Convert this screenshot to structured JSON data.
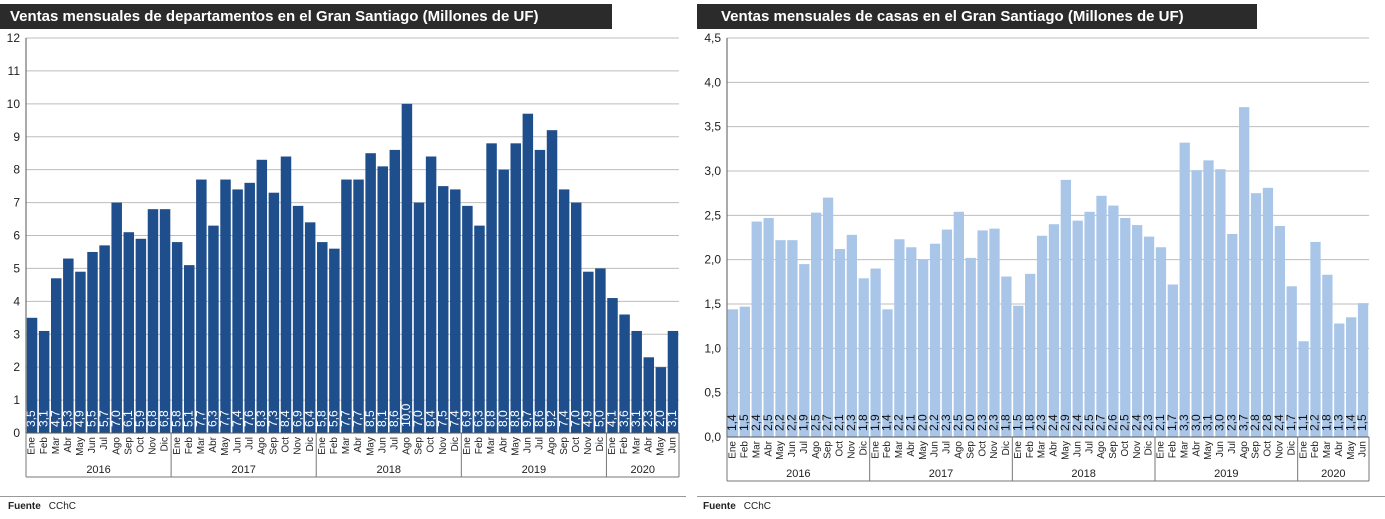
{
  "charts": [
    {
      "type": "bar",
      "title": "Ventas mensuales de departamentos en el Gran Santiago (Millones de UF)",
      "color": "#1f4e8c",
      "label_color": "#ffffff",
      "ylim": [
        0,
        12
      ],
      "yticks": [
        "0",
        "1",
        "2",
        "3",
        "4",
        "5",
        "6",
        "7",
        "8",
        "9",
        "10",
        "11",
        "12"
      ],
      "months": [
        "Ene",
        "Feb",
        "Mar",
        "Abr",
        "May",
        "Jun",
        "Jul",
        "Ago",
        "Sep",
        "Oct",
        "Nov",
        "Dic",
        "Ene",
        "Feb",
        "Mar",
        "Abr",
        "May",
        "Jun",
        "Jul",
        "Ago",
        "Sep",
        "Oct",
        "Nov",
        "Dic",
        "Ene",
        "Feb",
        "Mar",
        "Abr",
        "May",
        "Jun",
        "Jul",
        "Ago",
        "Sep",
        "Oct",
        "Nov",
        "Dic",
        "Ene",
        "Feb",
        "Mar",
        "Abr",
        "May",
        "Jun",
        "Jul",
        "Ago",
        "Sep",
        "Oct",
        "Nov",
        "Dic",
        "Ene",
        "Feb",
        "Mar",
        "Abr",
        "May",
        "Jun"
      ],
      "years": [
        "2016",
        "2017",
        "2018",
        "2019",
        "2020"
      ],
      "values": [
        3.5,
        3.1,
        4.7,
        5.3,
        4.9,
        5.5,
        5.7,
        7.0,
        6.1,
        5.9,
        6.8,
        6.8,
        5.8,
        5.1,
        7.7,
        6.3,
        7.7,
        7.4,
        7.6,
        8.3,
        7.3,
        8.4,
        6.9,
        6.4,
        5.8,
        5.6,
        7.7,
        7.7,
        8.5,
        8.1,
        8.6,
        10.0,
        7.0,
        8.4,
        7.5,
        7.4,
        6.9,
        6.3,
        8.8,
        8.0,
        8.8,
        9.7,
        8.6,
        9.2,
        7.4,
        7.0,
        4.9,
        5.0,
        4.1,
        3.6,
        3.1,
        2.3,
        2.0,
        3.1
      ],
      "labels": [
        "3,5",
        "3,1",
        "4,7",
        "5,3",
        "4,9",
        "5,5",
        "5,7",
        "7,0",
        "6,1",
        "5,9",
        "6,8",
        "6,8",
        "5,8",
        "5,1",
        "7,7",
        "6,3",
        "7,7",
        "7,4",
        "7,6",
        "8,3",
        "7,3",
        "8,4",
        "6,9",
        "6,4",
        "5,8",
        "5,6",
        "7,7",
        "7,7",
        "8,5",
        "8,1",
        "8,6",
        "10,0",
        "7,0",
        "8,4",
        "7,5",
        "7,4",
        "6,9",
        "6,3",
        "8,8",
        "8,0",
        "8,8",
        "9,7",
        "8,6",
        "9,2",
        "7,4",
        "7,0",
        "4,9",
        "5,0",
        "4,1",
        "3,6",
        "3,1",
        "2,3",
        "2,0",
        "3,1"
      ],
      "source_label": "Fuente",
      "source_value": "CChC"
    },
    {
      "type": "bar",
      "title": "Ventas mensuales de casas en el Gran Santiago  (Millones de UF)",
      "color": "#a9c6e8",
      "label_color": "#111111",
      "ylim": [
        0,
        4.5
      ],
      "yticks": [
        "0,0",
        "0,5",
        "1,0",
        "1,5",
        "2,0",
        "2,5",
        "3,0",
        "3,5",
        "4,0",
        "4,5"
      ],
      "months": [
        "Ene",
        "Feb",
        "Mar",
        "Abr",
        "May",
        "Jun",
        "Jul",
        "Ago",
        "Sep",
        "Oct",
        "Nov",
        "Dic",
        "Ene",
        "Feb",
        "Mar",
        "Abr",
        "May",
        "Jun",
        "Jul",
        "Ago",
        "Sep",
        "Oct",
        "Nov",
        "Dic",
        "Ene",
        "Feb",
        "Mar",
        "Abr",
        "May",
        "Jun",
        "Jul",
        "Ago",
        "Sep",
        "Oct",
        "Nov",
        "Dic",
        "Ene",
        "Feb",
        "Mar",
        "Abr",
        "May",
        "Jun",
        "Jul",
        "Ago",
        "Sep",
        "Oct",
        "Nov",
        "Dic",
        "Ene",
        "Feb",
        "Mar",
        "Abr",
        "May",
        "Jun"
      ],
      "years": [
        "2016",
        "2017",
        "2018",
        "2019",
        "2020"
      ],
      "values": [
        1.44,
        1.47,
        2.43,
        2.47,
        2.22,
        2.22,
        1.95,
        2.53,
        2.7,
        2.12,
        2.28,
        1.79,
        1.9,
        1.44,
        2.23,
        2.14,
        2.0,
        2.18,
        2.34,
        2.54,
        2.02,
        2.33,
        2.35,
        1.81,
        1.48,
        1.84,
        2.27,
        2.4,
        2.9,
        2.44,
        2.54,
        2.72,
        2.61,
        2.47,
        2.39,
        2.26,
        2.14,
        1.72,
        3.32,
        3.01,
        3.12,
        3.02,
        2.29,
        3.72,
        2.75,
        2.81,
        2.38,
        1.7,
        1.08,
        2.2,
        1.83,
        1.28,
        1.35,
        1.51
      ],
      "labels": [
        "1,4",
        "1,5",
        "2,4",
        "2,5",
        "2,2",
        "2,2",
        "1,9",
        "2,5",
        "2,7",
        "2,1",
        "2,3",
        "1,8",
        "1,9",
        "1,4",
        "2,2",
        "2,1",
        "2,0",
        "2,2",
        "2,3",
        "2,5",
        "2,0",
        "2,3",
        "2,3",
        "1,8",
        "1,5",
        "1,8",
        "2,3",
        "2,4",
        "2,9",
        "2,4",
        "2,5",
        "2,7",
        "2,6",
        "2,5",
        "2,4",
        "2,3",
        "2,1",
        "1,7",
        "3,3",
        "3,0",
        "3,1",
        "3,0",
        "2,3",
        "3,7",
        "2,8",
        "2,8",
        "2,4",
        "1,7",
        "1,1",
        "2,2",
        "1,8",
        "1,3",
        "1,4",
        "1,5"
      ],
      "source_label": "Fuente",
      "source_value": "CChC"
    }
  ]
}
